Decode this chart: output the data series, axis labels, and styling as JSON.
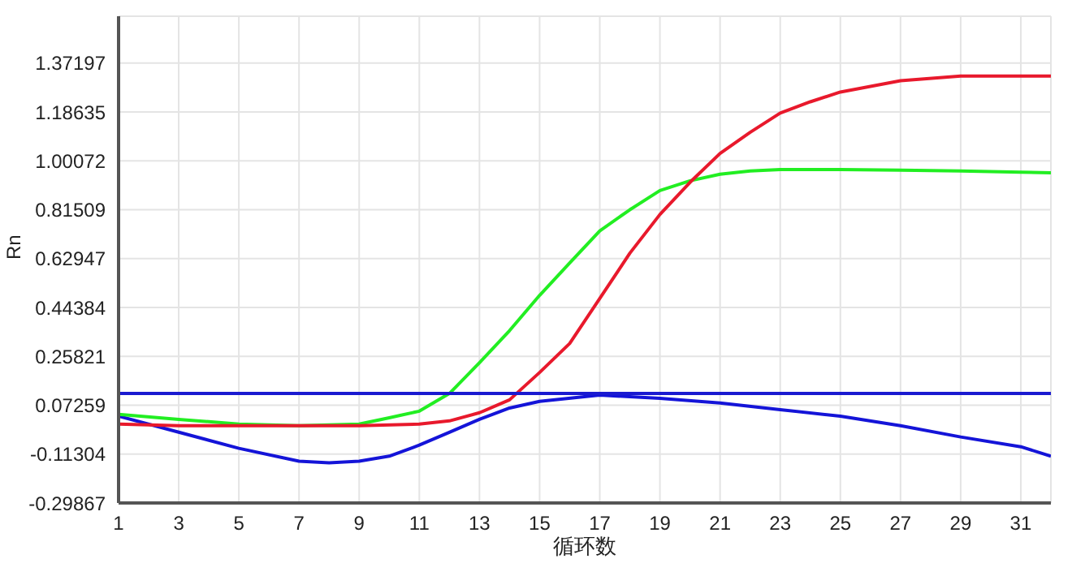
{
  "chart_data": {
    "type": "line",
    "xlabel": "循环数",
    "ylabel": "Rn",
    "xlim": [
      1,
      32
    ],
    "xticks": [
      1,
      3,
      5,
      7,
      9,
      11,
      13,
      15,
      17,
      19,
      21,
      23,
      25,
      27,
      29,
      31
    ],
    "ylim": [
      -0.29867,
      1.55
    ],
    "yticks": [
      -0.29867,
      -0.11304,
      0.07259,
      0.25821,
      0.44384,
      0.62947,
      0.81509,
      1.00072,
      1.18635,
      1.37197
    ],
    "grid": true,
    "legend": false,
    "marker": "none",
    "line_style": "solid",
    "ref_lines": [
      {
        "axis": "y",
        "value": 0.117,
        "color": "#1a1ad0"
      }
    ],
    "series": [
      {
        "color": "#e8192c",
        "x": [
          1,
          3,
          5,
          7,
          9,
          11,
          12,
          13,
          14,
          15,
          16,
          17,
          18,
          19,
          20,
          21,
          22,
          23,
          24,
          25,
          27,
          29,
          31,
          32
        ],
        "values": [
          0.001,
          -0.005,
          -0.005,
          -0.005,
          -0.005,
          0.001,
          0.013,
          0.044,
          0.093,
          0.197,
          0.307,
          0.478,
          0.65,
          0.797,
          0.919,
          1.029,
          1.109,
          1.182,
          1.225,
          1.262,
          1.305,
          1.323,
          1.323,
          1.323
        ]
      },
      {
        "color": "#22ee22",
        "x": [
          1,
          3,
          5,
          7,
          9,
          10,
          11,
          12,
          13,
          14,
          15,
          16,
          17,
          18,
          19,
          20,
          21,
          22,
          23,
          25,
          27,
          29,
          31,
          32
        ],
        "values": [
          0.038,
          0.019,
          0.001,
          -0.005,
          0.001,
          0.025,
          0.05,
          0.117,
          0.234,
          0.356,
          0.49,
          0.613,
          0.735,
          0.815,
          0.888,
          0.925,
          0.95,
          0.962,
          0.968,
          0.968,
          0.965,
          0.962,
          0.958,
          0.955
        ]
      },
      {
        "color": "#1414d8",
        "x": [
          1,
          3,
          5,
          7,
          8,
          9,
          10,
          11,
          12,
          13,
          14,
          15,
          17,
          19,
          21,
          23,
          25,
          27,
          29,
          31,
          32
        ],
        "values": [
          0.031,
          -0.03,
          -0.091,
          -0.14,
          -0.146,
          -0.14,
          -0.121,
          -0.079,
          -0.03,
          0.019,
          0.062,
          0.087,
          0.111,
          0.099,
          0.081,
          0.056,
          0.031,
          -0.005,
          -0.048,
          -0.085,
          -0.121
        ]
      }
    ]
  }
}
